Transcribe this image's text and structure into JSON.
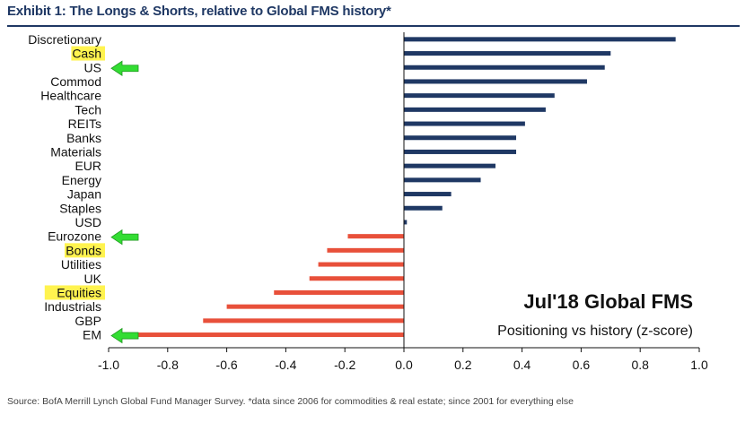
{
  "exhibit": {
    "title": "Exhibit 1: The Longs & Shorts, relative to Global FMS history*",
    "source": "Source:  BofA Merrill Lynch Global Fund Manager Survey. *data since 2006 for commodities & real estate; since 2001  for everything else"
  },
  "colors": {
    "positive": "#1f3864",
    "negative": "#e8503a",
    "highlight": "#fff34f",
    "arrow": "#33dd33",
    "title": "#1f3864"
  },
  "chart_data": {
    "type": "bar",
    "orientation": "horizontal",
    "title": "Exhibit 1: The Longs & Shorts, relative to Global FMS history*",
    "annotation_title": "Jul'18 Global FMS",
    "annotation_subtitle": "Positioning vs history (z-score)",
    "xlabel": "",
    "ylabel": "",
    "xlim": [
      -1.0,
      1.0
    ],
    "xticks": [
      "-1.0",
      "-0.8",
      "-0.6",
      "-0.4",
      "-0.2",
      "0.0",
      "0.2",
      "0.4",
      "0.6",
      "0.8",
      "1.0"
    ],
    "categories": [
      "Discretionary",
      "Cash",
      "US",
      "Commod",
      "Healthcare",
      "Tech",
      "REITs",
      "Banks",
      "Materials",
      "EUR",
      "Energy",
      "Japan",
      "Staples",
      "USD",
      "Eurozone",
      "Bonds",
      "Utilities",
      "UK",
      "Equities",
      "Industrials",
      "GBP",
      "EM"
    ],
    "values": [
      0.92,
      0.7,
      0.68,
      0.62,
      0.51,
      0.48,
      0.41,
      0.38,
      0.38,
      0.31,
      0.26,
      0.16,
      0.13,
      0.01,
      -0.19,
      -0.26,
      -0.29,
      -0.32,
      -0.44,
      -0.6,
      -0.68,
      -0.92
    ],
    "highlighted": [
      "Cash",
      "Bonds",
      "Equities"
    ],
    "arrows": [
      "US",
      "Eurozone",
      "EM"
    ]
  }
}
